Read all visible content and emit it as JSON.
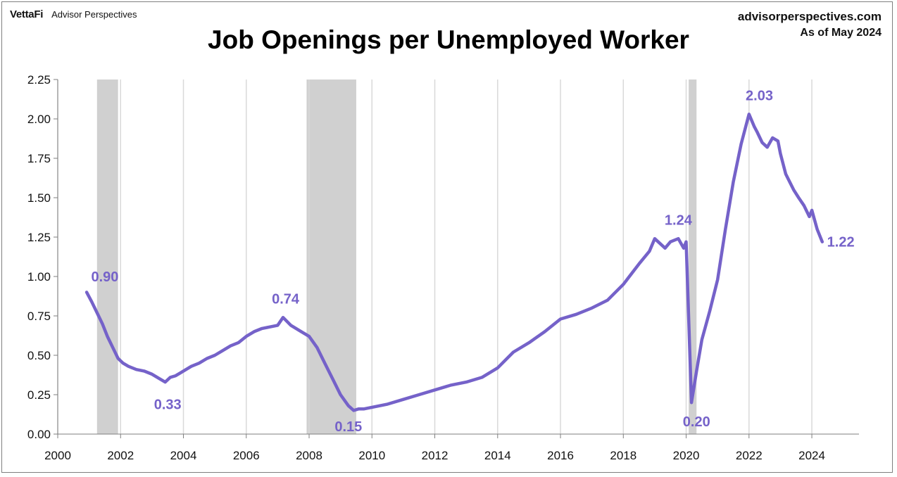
{
  "header": {
    "brand": "VettaFi",
    "brand_sub": "Advisor Perspectives",
    "site": "advisorperspectives.com",
    "as_of": "As of May 2024"
  },
  "chart_data": {
    "type": "line",
    "title": "Job Openings per Unemployed Worker",
    "xlabel": "",
    "ylabel": "",
    "xlim": [
      2000,
      2025.5
    ],
    "ylim": [
      0,
      2.25
    ],
    "x_ticks": [
      "2000",
      "2002",
      "2004",
      "2006",
      "2008",
      "2010",
      "2012",
      "2014",
      "2016",
      "2018",
      "2020",
      "2022",
      "2024"
    ],
    "y_ticks": [
      "0.00",
      "0.25",
      "0.50",
      "0.75",
      "1.00",
      "1.25",
      "1.50",
      "1.75",
      "2.00",
      "2.25"
    ],
    "grid": "vertical",
    "line_color": "#7562c9",
    "recession_color": "#d0d0d0",
    "recessions": [
      [
        2001.25,
        2001.92
      ],
      [
        2007.92,
        2009.5
      ],
      [
        2020.08,
        2020.33
      ]
    ],
    "series": [
      {
        "x": [
          2000.92,
          2001.08,
          2001.25,
          2001.42,
          2001.58,
          2001.75,
          2001.92,
          2002.08,
          2002.25,
          2002.5,
          2002.75,
          2003.0,
          2003.25,
          2003.42,
          2003.58,
          2003.75,
          2004.0,
          2004.25,
          2004.5,
          2004.75,
          2005.0,
          2005.25,
          2005.5,
          2005.75,
          2006.0,
          2006.25,
          2006.5,
          2006.75,
          2007.0,
          2007.17,
          2007.42,
          2007.75,
          2008.0,
          2008.25,
          2008.5,
          2008.75,
          2009.0,
          2009.25,
          2009.42,
          2009.58,
          2009.75,
          2010.0,
          2010.5,
          2011.0,
          2011.5,
          2012.0,
          2012.5,
          2013.0,
          2013.5,
          2014.0,
          2014.5,
          2015.0,
          2015.5,
          2016.0,
          2016.5,
          2017.0,
          2017.5,
          2018.0,
          2018.5,
          2018.83,
          2019.0,
          2019.33,
          2019.5,
          2019.75,
          2019.92,
          2020.0,
          2020.17,
          2020.33,
          2020.5,
          2020.75,
          2021.0,
          2021.25,
          2021.5,
          2021.75,
          2022.0,
          2022.17,
          2022.25,
          2022.42,
          2022.58,
          2022.75,
          2022.92,
          2023.0,
          2023.17,
          2023.42,
          2023.58,
          2023.75,
          2023.92,
          2024.0,
          2024.17,
          2024.33
        ],
        "values": [
          0.9,
          0.84,
          0.77,
          0.7,
          0.62,
          0.55,
          0.48,
          0.45,
          0.43,
          0.41,
          0.4,
          0.38,
          0.35,
          0.33,
          0.36,
          0.37,
          0.4,
          0.43,
          0.45,
          0.48,
          0.5,
          0.53,
          0.56,
          0.58,
          0.62,
          0.65,
          0.67,
          0.68,
          0.69,
          0.74,
          0.69,
          0.65,
          0.62,
          0.55,
          0.45,
          0.35,
          0.25,
          0.18,
          0.15,
          0.16,
          0.16,
          0.17,
          0.19,
          0.22,
          0.25,
          0.28,
          0.31,
          0.33,
          0.36,
          0.42,
          0.52,
          0.58,
          0.65,
          0.73,
          0.76,
          0.8,
          0.85,
          0.95,
          1.08,
          1.16,
          1.24,
          1.18,
          1.22,
          1.24,
          1.18,
          1.22,
          0.2,
          0.4,
          0.6,
          0.78,
          0.98,
          1.3,
          1.6,
          1.84,
          2.03,
          1.95,
          1.92,
          1.85,
          1.82,
          1.88,
          1.86,
          1.78,
          1.65,
          1.55,
          1.5,
          1.45,
          1.38,
          1.42,
          1.3,
          1.22
        ]
      }
    ],
    "data_labels": [
      {
        "x": 2001.5,
        "y": 1.0,
        "text": "0.90"
      },
      {
        "x": 2003.5,
        "y": 0.19,
        "text": "0.33"
      },
      {
        "x": 2007.25,
        "y": 0.86,
        "text": "0.74"
      },
      {
        "x": 2009.25,
        "y": 0.05,
        "text": "0.15"
      },
      {
        "x": 2019.75,
        "y": 1.36,
        "text": "1.24"
      },
      {
        "x": 2020.33,
        "y": 0.08,
        "text": "0.20"
      },
      {
        "x": 2022.33,
        "y": 2.15,
        "text": "2.03"
      },
      {
        "x": 2024.92,
        "y": 1.22,
        "text": "1.22"
      }
    ]
  }
}
